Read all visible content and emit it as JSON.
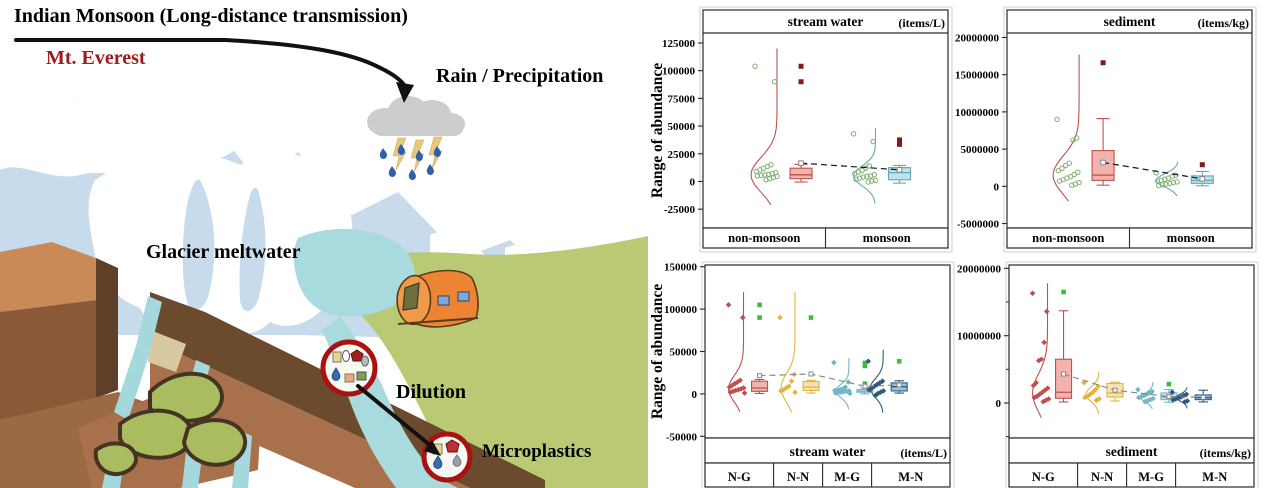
{
  "illustration": {
    "title": "Indian Monsoon (Long-distance transmission)",
    "labels": {
      "mountain": "Mt. Everest",
      "rain": "Rain / Precipitation",
      "glacier": "Glacier meltwater",
      "dilution": "Dilution",
      "microplastics": "Microplastics"
    },
    "colors": {
      "mountain_fill": "#c7dbec",
      "snow": "#ffffff",
      "cliff_light": "#c98a57",
      "cliff_mid": "#8a5a38",
      "cliff_dark": "#5f3f28",
      "slope_dark": "#6b4a2e",
      "slope_light": "#a9714b",
      "terrain": "#bac974",
      "water": "#a8dade",
      "moss": "#a9bc60",
      "rock_line": "#463423",
      "tent": "#ec8434",
      "cloud": "#cdcdcd",
      "raindrop": "#3060aa",
      "lightning": "#e9c77e",
      "ring": "#aa1111",
      "label_red": "#9e1b1b"
    }
  },
  "chart_data": [
    {
      "type": "box-violin",
      "id": "stream-water-seasonal",
      "header": "stream water",
      "unit": "(items/L)",
      "header_pos": "top",
      "ylabel": "Range of abundance",
      "ylim": [
        -42000,
        134000
      ],
      "yticks": [
        125000,
        100000,
        75000,
        50000,
        25000,
        0,
        -25000
      ],
      "yticks_minor": [],
      "mean_line_color": "#1a1a1a",
      "xcells": {
        "labels": [
          "non-monsoon",
          "monsoon"
        ],
        "widths": [
          0.5,
          0.5
        ]
      },
      "groups": [
        {
          "label": "non-monsoon",
          "cx_f": 0.343,
          "line_color": "#c0504d",
          "fill_color": "#f1b3ab",
          "marker": "circle",
          "marker_color": "#7fae6d",
          "outlier_color": "#7f1d1d",
          "scatter": [
            104000,
            90000,
            15000,
            13500,
            12000,
            10500,
            9000,
            8000,
            7000,
            6500,
            6000,
            5500,
            5000,
            4500,
            3500,
            2500,
            1500
          ],
          "outliers": [
            104000,
            90000
          ],
          "box": {
            "low": -500,
            "q1": 2500,
            "median": 6000,
            "q3": 12000,
            "high": 15500,
            "mean": 16500
          },
          "violin": {
            "lo": -21000,
            "hi": 120000,
            "peak": 6000,
            "sd": 16000,
            "amp": 26
          }
        },
        {
          "label": "monsoon",
          "cx_f": 0.745,
          "line_color": "#62a8b8",
          "fill_color": "#bfe0ee",
          "marker": "circle",
          "marker_color": "#7fae6d",
          "outlier_color": "#7f1d1d",
          "scatter": [
            43000,
            36000,
            14000,
            12000,
            10000,
            8500,
            7000,
            6000,
            5000,
            4500,
            4000,
            3000,
            2000,
            1000,
            500,
            -500
          ],
          "outliers": [
            37500,
            33500
          ],
          "box": {
            "low": -1500,
            "q1": 1500,
            "median": 8000,
            "q3": 12500,
            "high": 14500,
            "mean": 10500
          },
          "violin": {
            "lo": -20000,
            "hi": 48000,
            "peak": 5000,
            "sd": 9000,
            "amp": 22
          }
        }
      ]
    },
    {
      "type": "box-violin",
      "id": "sediment-seasonal",
      "header": "sediment",
      "unit": "(items/kg)",
      "header_pos": "top",
      "ylabel": null,
      "ylim": [
        -5600000,
        20600000
      ],
      "yticks": [
        20000000,
        15000000,
        10000000,
        5000000,
        0,
        -5000000
      ],
      "yticks_minor": [],
      "mean_line_color": "#1a1a1a",
      "xcells": {
        "labels": [
          "non-monsoon",
          "monsoon"
        ],
        "widths": [
          0.5,
          0.5
        ]
      },
      "groups": [
        {
          "label": "non-monsoon",
          "cx_f": 0.335,
          "line_color": "#c0504d",
          "fill_color": "#f1b3ab",
          "marker": "circle",
          "marker_color": "#7fae6d",
          "outlier_color": "#7f1d1d",
          "scatter": [
            9000000,
            6500000,
            6200000,
            3100000,
            2800000,
            2400000,
            2100000,
            1900000,
            1600000,
            1300000,
            1100000,
            900000,
            700000,
            500000,
            300000,
            150000
          ],
          "outliers": [
            16600000
          ],
          "box": {
            "low": 150000,
            "q1": 800000,
            "median": 1500000,
            "q3": 4800000,
            "high": 9100000,
            "mean": 3200000
          },
          "violin": {
            "lo": -2000000,
            "hi": 17700000,
            "peak": 1500000,
            "sd": 2600000,
            "amp": 26
          }
        },
        {
          "label": "monsoon",
          "cx_f": 0.74,
          "line_color": "#62a8b8",
          "fill_color": "#bfe0ee",
          "marker": "circle",
          "marker_color": "#7fae6d",
          "outlier_color": "#7f1d1d",
          "scatter": [
            1800000,
            1500000,
            1300000,
            1100000,
            950000,
            800000,
            700000,
            600000,
            500000,
            400000,
            300000,
            200000,
            100000
          ],
          "outliers": [
            2900000
          ],
          "box": {
            "low": 80000,
            "q1": 400000,
            "median": 800000,
            "q3": 1400000,
            "high": 2000000,
            "mean": 1000000
          },
          "violin": {
            "lo": -1300000,
            "hi": 3300000,
            "peak": 800000,
            "sd": 900000,
            "amp": 22
          }
        }
      ]
    },
    {
      "type": "box-violin",
      "id": "stream-water-groups",
      "header": "stream water",
      "unit": "(items/L)",
      "header_pos": "bottom",
      "ylabel": "Range of abundance",
      "ylim": [
        -52000,
        152000
      ],
      "yticks": [
        150000,
        100000,
        50000,
        0,
        -50000
      ],
      "yticks_minor": [],
      "mean_line_color": "#8a8a8a",
      "xcells": {
        "labels": [
          "N-G",
          "N-N",
          "M-G",
          "M-N"
        ],
        "widths": [
          0.28,
          0.2,
          0.2,
          0.32
        ]
      },
      "groups": [
        {
          "label": "N-G",
          "cx_f": 0.19,
          "line_color": "#c0504d",
          "fill_color": "#f1b3ab",
          "marker": "diamond",
          "marker_color": "#c0504d",
          "outlier_color": "#3dbb3d",
          "scatter": [
            105000,
            90000,
            16000,
            14000,
            12000,
            10000,
            8000,
            7000,
            6000,
            5000,
            4000,
            3000,
            2000,
            1000
          ],
          "outliers": [
            105000,
            90000
          ],
          "box": {
            "low": 500,
            "q1": 3000,
            "median": 7000,
            "q3": 15000,
            "high": 17000,
            "mean": 21500
          },
          "violin": {
            "lo": -21000,
            "hi": 120000,
            "peak": 6000,
            "sd": 16000,
            "amp": 15
          }
        },
        {
          "label": "N-N",
          "cx_f": 0.4,
          "line_color": "#e3b33c",
          "fill_color": "#f6e3b4",
          "marker": "diamond",
          "marker_color": "#e3b33c",
          "outlier_color": "#3dbb3d",
          "scatter": [
            90000,
            23000,
            15000,
            9000,
            7000,
            5000,
            3500,
            2000
          ],
          "outliers": [
            90000
          ],
          "box": {
            "low": 1000,
            "q1": 4000,
            "median": 8000,
            "q3": 14500,
            "high": 16000,
            "mean": 23500
          },
          "violin": {
            "lo": -22000,
            "hi": 120000,
            "peak": 7000,
            "sd": 17000,
            "amp": 14
          }
        },
        {
          "label": "M-G",
          "cx_f": 0.62,
          "line_color": "#74b5c8",
          "fill_color": "#c3e2ec",
          "marker": "diamond",
          "marker_color": "#74b5c8",
          "outlier_color": "#3dbb3d",
          "scatter": [
            37000,
            14000,
            8000,
            6000,
            5000,
            4500,
            4000,
            3500,
            3000,
            2500,
            2000,
            1500,
            1000,
            500
          ],
          "outliers": [
            36500,
            33000,
            12000
          ],
          "box": {
            "low": 0,
            "q1": 2000,
            "median": 3200,
            "q3": 5200,
            "high": 7000,
            "mean": 9000
          },
          "violin": {
            "lo": -18000,
            "hi": 42000,
            "peak": 3500,
            "sd": 8000,
            "amp": 13
          }
        },
        {
          "label": "M-N",
          "cx_f": 0.76,
          "line_color": "#2e5a80",
          "fill_color": "#9fc2dc",
          "marker": "diamond",
          "marker_color": "#2e5a80",
          "outlier_color": "#3dbb3d",
          "scatter": [
            38500,
            15000,
            13000,
            11000,
            9000,
            7000,
            5000,
            3500,
            2000,
            500,
            -2000
          ],
          "outliers": [
            38500
          ],
          "box": {
            "low": 1000,
            "q1": 3500,
            "median": 8500,
            "q3": 13000,
            "high": 15500,
            "mean": 10500
          },
          "violin": {
            "lo": -22000,
            "hi": 52000,
            "peak": 7000,
            "sd": 11000,
            "amp": 13
          }
        }
      ]
    },
    {
      "type": "box-violin",
      "id": "sediment-groups",
      "header": "sediment",
      "unit": "(items/kg)",
      "header_pos": "bottom",
      "ylabel": null,
      "ylim": [
        -5200000,
        20500000
      ],
      "yticks": [
        20000000,
        10000000,
        0
      ],
      "yticks_minor": [
        15000000,
        5000000,
        -5000000
      ],
      "mean_line_color": "#8a8a8a",
      "xcells": {
        "labels": [
          "N-G",
          "N-N",
          "M-G",
          "M-N"
        ],
        "widths": [
          0.28,
          0.2,
          0.2,
          0.32
        ]
      },
      "groups": [
        {
          "label": "N-G",
          "cx_f": 0.19,
          "line_color": "#c0504d",
          "fill_color": "#f1b3ab",
          "marker": "diamond",
          "marker_color": "#c0504d",
          "outlier_color": "#3dbb3d",
          "scatter": [
            16300000,
            13600000,
            9000000,
            6500000,
            6300000,
            3000000,
            2600000,
            2200000,
            1900000,
            1600000,
            1300000,
            1000000,
            800000,
            600000,
            400000,
            200000
          ],
          "outliers": [
            16500000
          ],
          "box": {
            "low": 150000,
            "q1": 700000,
            "median": 1600000,
            "q3": 6500000,
            "high": 13700000,
            "mean": 4300000
          },
          "violin": {
            "lo": -2200000,
            "hi": 17800000,
            "peak": 1500000,
            "sd": 2800000,
            "amp": 15
          }
        },
        {
          "label": "N-N",
          "cx_f": 0.4,
          "line_color": "#e3b33c",
          "fill_color": "#f6e3b4",
          "marker": "diamond",
          "marker_color": "#e3b33c",
          "outlier_color": "#3dbb3d",
          "scatter": [
            3000000,
            2500000,
            2000000,
            1600000,
            1300000,
            1000000,
            800000,
            600000,
            400000
          ],
          "outliers": [],
          "box": {
            "low": 300000,
            "q1": 900000,
            "median": 1500000,
            "q3": 2900000,
            "high": 3100000,
            "mean": 1900000
          },
          "violin": {
            "lo": -1600000,
            "hi": 4600000,
            "peak": 1300000,
            "sd": 1100000,
            "amp": 13
          }
        },
        {
          "label": "M-G",
          "cx_f": 0.62,
          "line_color": "#74b5c8",
          "fill_color": "#c3e2ec",
          "marker": "diamond",
          "marker_color": "#74b5c8",
          "outlier_color": "#3dbb3d",
          "scatter": [
            2000000,
            1700000,
            1500000,
            1300000,
            1100000,
            950000,
            800000,
            650000,
            500000,
            350000,
            200000
          ],
          "outliers": [
            2800000
          ],
          "box": {
            "low": 100000,
            "q1": 500000,
            "median": 850000,
            "q3": 1500000,
            "high": 2000000,
            "mean": 950000
          },
          "violin": {
            "lo": -900000,
            "hi": 3100000,
            "peak": 800000,
            "sd": 700000,
            "amp": 12
          }
        },
        {
          "label": "M-N",
          "cx_f": 0.76,
          "line_color": "#2e5a80",
          "fill_color": "#9fc2dc",
          "marker": "diamond",
          "marker_color": "#2e5a80",
          "outlier_color": "#3dbb3d",
          "scatter": [
            1600000,
            1300000,
            1100000,
            900000,
            750000,
            600000,
            450000,
            300000,
            150000
          ],
          "outliers": [],
          "box": {
            "low": 150000,
            "q1": 500000,
            "median": 800000,
            "q3": 1200000,
            "high": 1900000,
            "mean": 850000
          },
          "violin": {
            "lo": -800000,
            "hi": 2300000,
            "peak": 800000,
            "sd": 550000,
            "amp": 11
          }
        }
      ]
    }
  ]
}
